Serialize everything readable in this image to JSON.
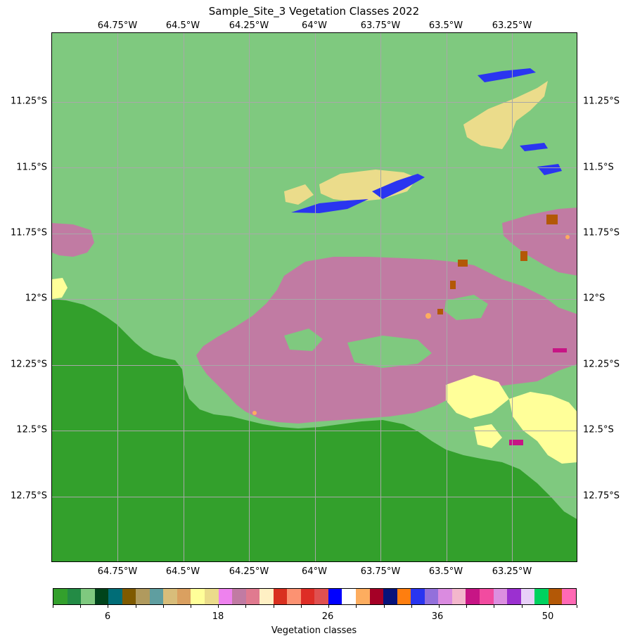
{
  "title": "Sample_Site_3 Vegetation Classes 2022",
  "longitude_labels": [
    "64.75°W",
    "64.5°W",
    "64.25°W",
    "64°W",
    "63.75°W",
    "63.5°W",
    "63.25°W"
  ],
  "latitude_labels": [
    "11.25°S",
    "11.5°S",
    "11.75°S",
    "12°S",
    "12.25°S",
    "12.5°S",
    "12.75°S"
  ],
  "colorbar": {
    "label": "Vegetation classes",
    "tick_labels": [
      "6",
      "18",
      "26",
      "36",
      "50"
    ],
    "colors": [
      "#33a02c",
      "#238b45",
      "#7fc97f",
      "#00441b",
      "#006d77",
      "#7f5a00",
      "#b09a5e",
      "#5f9ea0",
      "#d8bd7a",
      "#daa060",
      "#ffff99",
      "#ebdc8b",
      "#ee82ee",
      "#c17ba3",
      "#e07a8f",
      "#fff0c4",
      "#d9301f",
      "#fc9272",
      "#de2d26",
      "#e05050",
      "#0000ff",
      "#ffffff",
      "#fdad5f",
      "#a50026",
      "#08137a",
      "#fe7e0f",
      "#2a35f0",
      "#9370db",
      "#da8be0",
      "#f3b7cc",
      "#c71585",
      "#f24ba0",
      "#dc8fe0",
      "#9b30d0",
      "#e8d0f8",
      "#00d25f",
      "#b35806",
      "#ff69b4"
    ]
  },
  "chart_data": {
    "type": "map",
    "title": "Sample_Site_3 Vegetation Classes 2022",
    "xlabel": "",
    "ylabel": "",
    "lon_ticks": [
      -64.75,
      -64.5,
      -64.25,
      -64.0,
      -63.75,
      -63.5,
      -63.25
    ],
    "lat_ticks": [
      -11.25,
      -11.5,
      -11.75,
      -12.0,
      -12.25,
      -12.5,
      -12.75
    ],
    "lon_range": [
      -65.0,
      -63.0
    ],
    "lat_range": [
      -13.0,
      -11.0
    ],
    "grid": true,
    "colorbar_label": "Vegetation classes",
    "colorbar_ticks": [
      6,
      18,
      26,
      36,
      50
    ],
    "colorbar_range": [
      1,
      55
    ],
    "dominant_classes": [
      {
        "class_color": "#7fc97f",
        "region": "north and central land"
      },
      {
        "class_color": "#33a02c",
        "region": "southwest"
      },
      {
        "class_color": "#c17ba3",
        "region": "central-east patches"
      },
      {
        "class_color": "#ebdc8b",
        "region": "northeast patches"
      },
      {
        "class_color": "#ffff99",
        "region": "southeast patches"
      },
      {
        "class_color": "#2a35f0",
        "region": "linear northern strips"
      }
    ]
  }
}
